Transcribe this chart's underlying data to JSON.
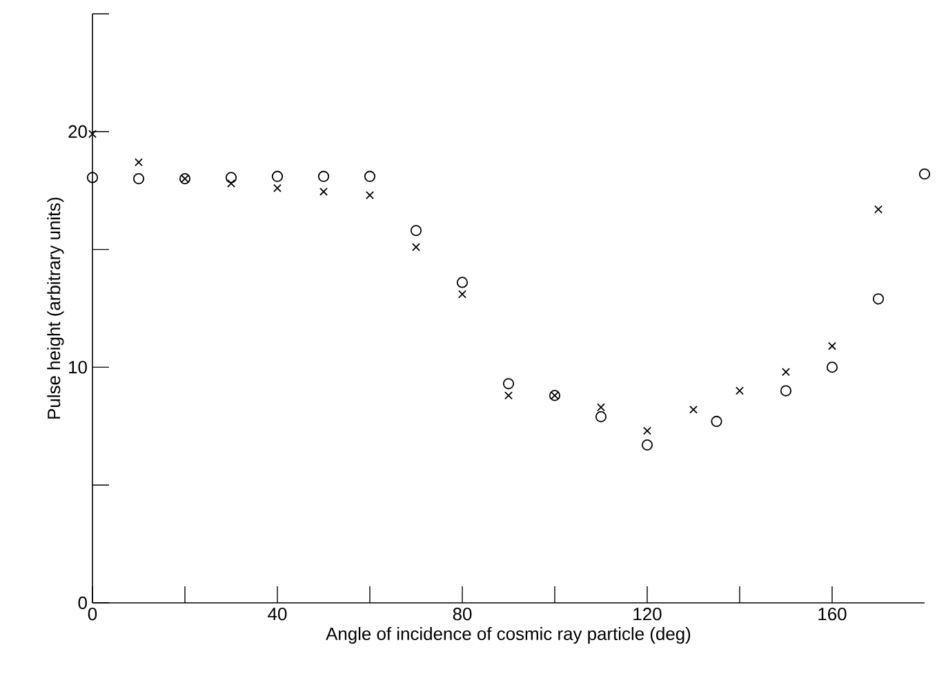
{
  "chart_data": {
    "type": "scatter",
    "xlabel": "Angle of incidence of cosmic ray particle (deg)",
    "ylabel": "Pulse height (arbitrary units)",
    "xlim": [
      0,
      180
    ],
    "ylim": [
      0,
      25
    ],
    "xticks": [
      0,
      {
        "value": 20,
        "label": null
      },
      40,
      {
        "value": 60,
        "label": null
      },
      80,
      {
        "value": 100,
        "label": null
      },
      120,
      {
        "value": 140,
        "label": null
      },
      160
    ],
    "yticks": [
      0,
      {
        "value": 5,
        "label": null
      },
      10,
      {
        "value": 15,
        "label": null
      },
      20,
      {
        "value": 25,
        "label": null
      }
    ],
    "grid": false,
    "series": [
      {
        "color": "#000000",
        "marker": "circle",
        "x": [
          0,
          10,
          20,
          30,
          40,
          50,
          60,
          70,
          80,
          90,
          100,
          110,
          120,
          135,
          150,
          160,
          170,
          180
        ],
        "values": [
          18.05,
          18.0,
          18.0,
          18.05,
          18.1,
          18.1,
          18.1,
          15.8,
          13.6,
          9.3,
          8.8,
          7.9,
          6.7,
          7.7,
          9.0,
          10.0,
          12.9,
          18.2
        ]
      },
      {
        "color": "#000000",
        "marker": "cross",
        "x": [
          0,
          10,
          20,
          30,
          40,
          50,
          60,
          70,
          80,
          90,
          100,
          110,
          120,
          130,
          140,
          150,
          160,
          170
        ],
        "values": [
          19.9,
          18.7,
          18.0,
          17.8,
          17.6,
          17.45,
          17.3,
          15.1,
          13.1,
          8.8,
          8.8,
          8.3,
          7.3,
          8.2,
          9.0,
          9.8,
          10.9,
          16.7
        ]
      }
    ]
  }
}
